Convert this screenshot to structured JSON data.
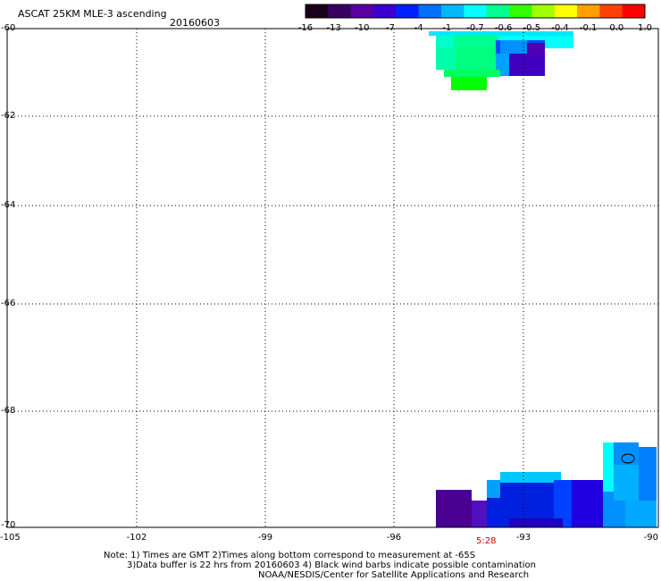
{
  "header": {
    "title": "ASCAT 25KM MLE-3 ascending",
    "date": "20160603"
  },
  "colorbar": {
    "labels": [
      "-16",
      "-13",
      "-10",
      "-7",
      "-4",
      "-1",
      "-0.7",
      "-0.6",
      "-0.5",
      "-0.4",
      "-0.1",
      "0.0",
      "1.0"
    ],
    "colors": [
      "#1a001a",
      "#3a0060",
      "#5a00a0",
      "#3a00d0",
      "#0020ff",
      "#0070ff",
      "#00b8ff",
      "#00ffff",
      "#00ff90",
      "#30ff00",
      "#a0ff00",
      "#ffff00",
      "#ffa000",
      "#ff4000",
      "#ff0000"
    ]
  },
  "map": {
    "lat_labels": [
      "-60",
      "-62",
      "-64",
      "-66",
      "-68",
      "-70"
    ],
    "lon_labels": [
      "-105",
      "-102",
      "-99",
      "-96",
      "-93",
      "-90"
    ],
    "time_label": "5:28"
  },
  "notes": {
    "line1": "Note: 1) Times are GMT 2)Times along bottom correspond to measurement at -65S",
    "line2": "3)Data buffer is 22 hrs from 20160603 4) Black wind barbs indicate possible contamination",
    "line3": "NOAA/NESDIS/Center for Satellite Applications and Research"
  }
}
